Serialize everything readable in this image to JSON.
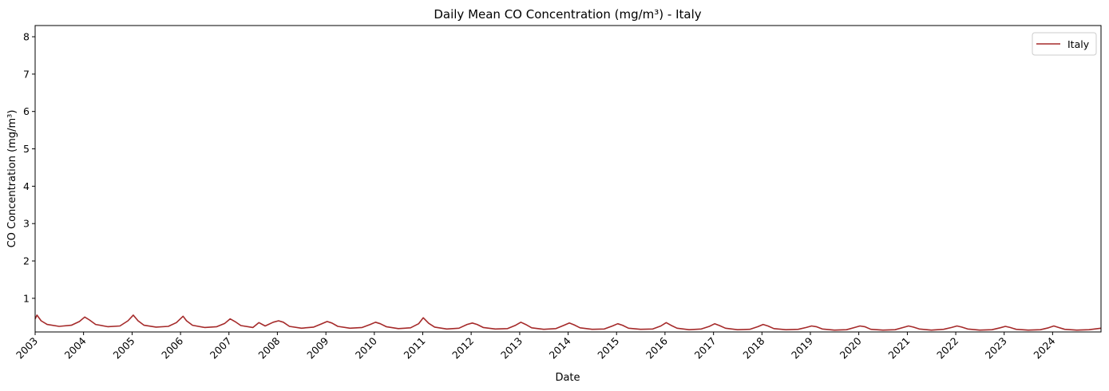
{
  "chart_data": {
    "type": "line",
    "title": "Daily Mean CO Concentration (mg/m³) - Italy",
    "xlabel": "Date",
    "ylabel": "CO Concentration (mg/m³)",
    "xlim": [
      "2003-01-01",
      "2024-12-31"
    ],
    "ylim": [
      0.1,
      8.3
    ],
    "x_ticks": [
      "2003",
      "2004",
      "2005",
      "2006",
      "2007",
      "2008",
      "2009",
      "2010",
      "2011",
      "2012",
      "2013",
      "2014",
      "2015",
      "2016",
      "2017",
      "2018",
      "2019",
      "2020",
      "2021",
      "2022",
      "2023",
      "2024"
    ],
    "y_ticks": [
      1,
      2,
      3,
      4,
      5,
      6,
      7,
      8
    ],
    "grid": false,
    "legend": {
      "position": "top-right",
      "entries": [
        "Italy"
      ]
    },
    "series": [
      {
        "name": "Italy",
        "color": "#a52a2a",
        "x": [
          "2003-01-01",
          "2003-01-15",
          "2003-02-15",
          "2003-04-01",
          "2003-07-01",
          "2003-10-01",
          "2003-12-01",
          "2004-01-10",
          "2004-02-15",
          "2004-04-01",
          "2004-07-01",
          "2004-10-01",
          "2004-12-01",
          "2005-01-10",
          "2005-02-15",
          "2005-04-01",
          "2005-07-01",
          "2005-10-01",
          "2005-12-01",
          "2006-01-20",
          "2006-02-15",
          "2006-04-01",
          "2006-07-01",
          "2006-10-01",
          "2006-12-01",
          "2007-01-10",
          "2007-02-15",
          "2007-04-01",
          "2007-07-01",
          "2007-08-15",
          "2007-10-01",
          "2007-12-01",
          "2008-01-10",
          "2008-02-15",
          "2008-04-01",
          "2008-07-01",
          "2008-10-01",
          "2008-12-01",
          "2009-01-10",
          "2009-02-15",
          "2009-04-01",
          "2009-07-01",
          "2009-10-01",
          "2009-12-01",
          "2010-01-10",
          "2010-02-15",
          "2010-04-01",
          "2010-07-01",
          "2010-10-01",
          "2010-12-01",
          "2011-01-05",
          "2011-02-15",
          "2011-04-01",
          "2011-07-01",
          "2011-10-01",
          "2011-12-01",
          "2012-01-10",
          "2012-02-15",
          "2012-04-01",
          "2012-07-01",
          "2012-10-01",
          "2012-12-01",
          "2013-01-10",
          "2013-02-15",
          "2013-04-01",
          "2013-07-01",
          "2013-10-01",
          "2013-12-01",
          "2014-01-10",
          "2014-02-15",
          "2014-04-01",
          "2014-07-01",
          "2014-10-01",
          "2014-12-01",
          "2015-01-10",
          "2015-02-15",
          "2015-04-01",
          "2015-07-01",
          "2015-10-01",
          "2015-12-01",
          "2016-01-10",
          "2016-02-15",
          "2016-04-01",
          "2016-07-01",
          "2016-10-01",
          "2016-12-01",
          "2017-01-10",
          "2017-02-15",
          "2017-04-01",
          "2017-07-01",
          "2017-10-01",
          "2017-12-01",
          "2018-01-10",
          "2018-02-15",
          "2018-04-01",
          "2018-07-01",
          "2018-10-01",
          "2018-12-01",
          "2019-01-10",
          "2019-02-15",
          "2019-04-01",
          "2019-07-01",
          "2019-10-01",
          "2019-12-01",
          "2020-01-10",
          "2020-02-15",
          "2020-04-01",
          "2020-07-01",
          "2020-10-01",
          "2020-12-01",
          "2021-01-10",
          "2021-02-15",
          "2021-04-01",
          "2021-07-01",
          "2021-10-01",
          "2021-12-01",
          "2022-01-10",
          "2022-02-15",
          "2022-04-01",
          "2022-07-01",
          "2022-10-01",
          "2022-12-01",
          "2023-01-10",
          "2023-02-15",
          "2023-04-01",
          "2023-07-01",
          "2023-10-01",
          "2023-12-01",
          "2024-01-10",
          "2024-02-15",
          "2024-04-01",
          "2024-07-01",
          "2024-10-01",
          "2024-12-31"
        ],
        "values": [
          0.45,
          0.55,
          0.4,
          0.3,
          0.25,
          0.28,
          0.38,
          0.5,
          0.42,
          0.3,
          0.24,
          0.26,
          0.4,
          0.55,
          0.4,
          0.28,
          0.23,
          0.25,
          0.35,
          0.52,
          0.4,
          0.28,
          0.22,
          0.24,
          0.33,
          0.45,
          0.38,
          0.27,
          0.22,
          0.35,
          0.26,
          0.36,
          0.4,
          0.36,
          0.25,
          0.2,
          0.23,
          0.32,
          0.38,
          0.34,
          0.25,
          0.2,
          0.22,
          0.3,
          0.36,
          0.32,
          0.24,
          0.19,
          0.21,
          0.32,
          0.48,
          0.33,
          0.23,
          0.18,
          0.2,
          0.3,
          0.34,
          0.3,
          0.22,
          0.18,
          0.19,
          0.28,
          0.36,
          0.3,
          0.21,
          0.17,
          0.19,
          0.28,
          0.34,
          0.29,
          0.21,
          0.17,
          0.18,
          0.26,
          0.32,
          0.28,
          0.2,
          0.17,
          0.18,
          0.26,
          0.35,
          0.28,
          0.2,
          0.16,
          0.18,
          0.25,
          0.32,
          0.27,
          0.2,
          0.16,
          0.17,
          0.24,
          0.3,
          0.26,
          0.19,
          0.16,
          0.17,
          0.22,
          0.26,
          0.24,
          0.18,
          0.15,
          0.16,
          0.22,
          0.26,
          0.24,
          0.17,
          0.15,
          0.16,
          0.22,
          0.26,
          0.23,
          0.18,
          0.15,
          0.17,
          0.22,
          0.26,
          0.23,
          0.18,
          0.15,
          0.16,
          0.21,
          0.25,
          0.22,
          0.17,
          0.15,
          0.16,
          0.21,
          0.26,
          0.22,
          0.17,
          0.15,
          0.16,
          0.2
        ]
      }
    ]
  }
}
